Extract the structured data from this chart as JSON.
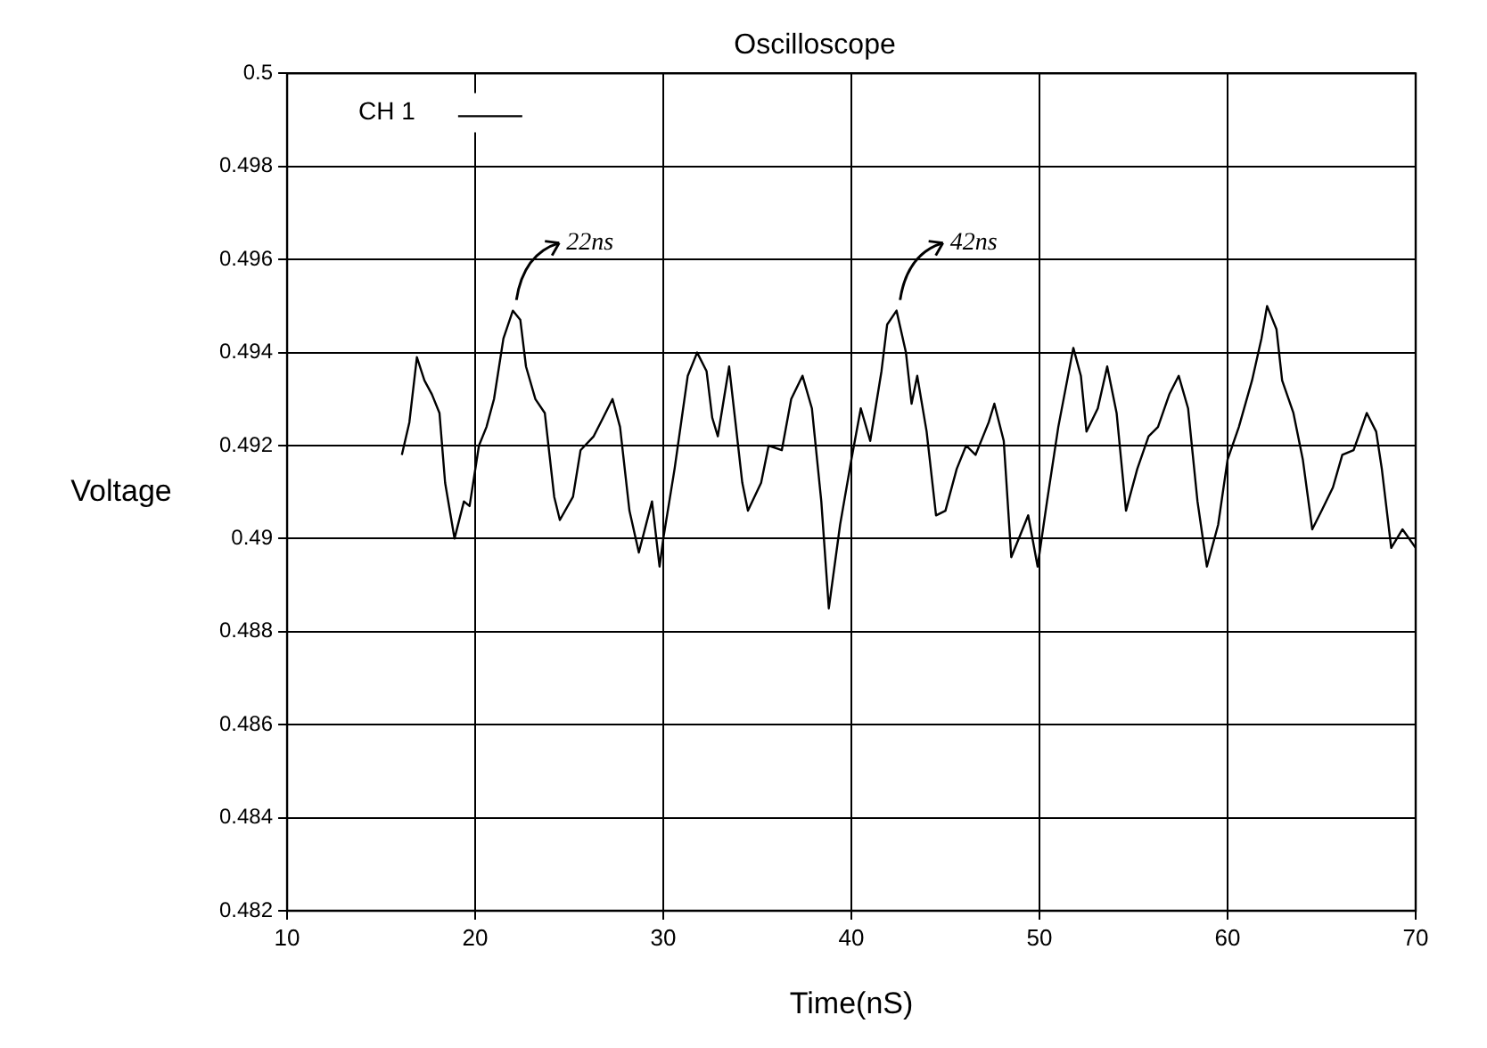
{
  "chart_data": {
    "type": "line",
    "title": "Oscilloscope",
    "xlabel": "Time(nS)",
    "ylabel": "Voltage",
    "xlim": [
      10,
      70
    ],
    "xticks": [
      10,
      20,
      30,
      40,
      50,
      60,
      70
    ],
    "ylim": [
      0.482,
      0.5
    ],
    "yticks": [
      0.482,
      0.484,
      0.486,
      0.488,
      0.49,
      0.492,
      0.494,
      0.496,
      0.498,
      0.5
    ],
    "grid": true,
    "legend": "top left",
    "marker": "none",
    "line_style": "solid",
    "annotations": [
      {
        "text": "22ns",
        "x": 22,
        "y": 0.4949
      },
      {
        "text": "42ns",
        "x": 42.4,
        "y": 0.4949
      }
    ],
    "series": [
      {
        "name": "CH 1",
        "color": "#000000",
        "x": [
          16.1,
          16.5,
          16.9,
          17.3,
          17.7,
          18.1,
          18.4,
          18.9,
          19.4,
          19.7,
          20.2,
          20.6,
          21.0,
          21.5,
          22.0,
          22.4,
          22.7,
          23.2,
          23.7,
          24.2,
          24.5,
          25.2,
          25.6,
          26.3,
          26.8,
          27.3,
          27.7,
          28.2,
          28.7,
          29.4,
          29.8,
          30.0,
          30.6,
          31.3,
          31.8,
          32.3,
          32.6,
          32.9,
          33.5,
          34.2,
          34.5,
          35.2,
          35.6,
          36.3,
          36.8,
          37.4,
          37.9,
          38.4,
          38.8,
          39.4,
          40.0,
          40.5,
          41.0,
          41.6,
          41.9,
          42.4,
          42.9,
          43.2,
          43.5,
          44.0,
          44.5,
          45.0,
          45.6,
          46.1,
          46.6,
          47.3,
          47.6,
          48.1,
          48.5,
          49.4,
          49.9,
          50.4,
          51.0,
          51.8,
          52.2,
          52.5,
          53.1,
          53.6,
          54.1,
          54.6,
          55.2,
          55.8,
          56.3,
          56.9,
          57.4,
          57.9,
          58.4,
          58.9,
          59.5,
          60.0,
          60.6,
          61.3,
          61.8,
          62.1,
          62.6,
          62.9,
          63.5,
          64.0,
          64.5,
          65.0,
          65.6,
          66.1,
          66.7,
          67.4,
          67.9,
          68.2,
          68.7,
          69.3,
          70.0
        ],
        "values": [
          0.4918,
          0.4925,
          0.4939,
          0.4934,
          0.4931,
          0.4927,
          0.4912,
          0.49,
          0.4908,
          0.4907,
          0.492,
          0.4924,
          0.493,
          0.4943,
          0.4949,
          0.4947,
          0.4937,
          0.493,
          0.4927,
          0.4909,
          0.4904,
          0.4909,
          0.4919,
          0.4922,
          0.4926,
          0.493,
          0.4924,
          0.4906,
          0.4897,
          0.4908,
          0.4894,
          0.49,
          0.4915,
          0.4935,
          0.494,
          0.4936,
          0.4926,
          0.4922,
          0.4937,
          0.4912,
          0.4906,
          0.4912,
          0.492,
          0.4919,
          0.493,
          0.4935,
          0.4928,
          0.4908,
          0.4885,
          0.4903,
          0.4917,
          0.4928,
          0.4921,
          0.4936,
          0.4946,
          0.4949,
          0.494,
          0.4929,
          0.4935,
          0.4923,
          0.4905,
          0.4906,
          0.4915,
          0.492,
          0.4918,
          0.4925,
          0.4929,
          0.4921,
          0.4896,
          0.4905,
          0.4894,
          0.4908,
          0.4924,
          0.4941,
          0.4935,
          0.4923,
          0.4928,
          0.4937,
          0.4927,
          0.4906,
          0.4915,
          0.4922,
          0.4924,
          0.4931,
          0.4935,
          0.4928,
          0.4908,
          0.4894,
          0.4903,
          0.4917,
          0.4924,
          0.4934,
          0.4943,
          0.495,
          0.4945,
          0.4934,
          0.4927,
          0.4917,
          0.4902,
          0.4906,
          0.4911,
          0.4918,
          0.4919,
          0.4927,
          0.4923,
          0.4915,
          0.4898,
          0.4902,
          0.4898
        ]
      }
    ]
  }
}
